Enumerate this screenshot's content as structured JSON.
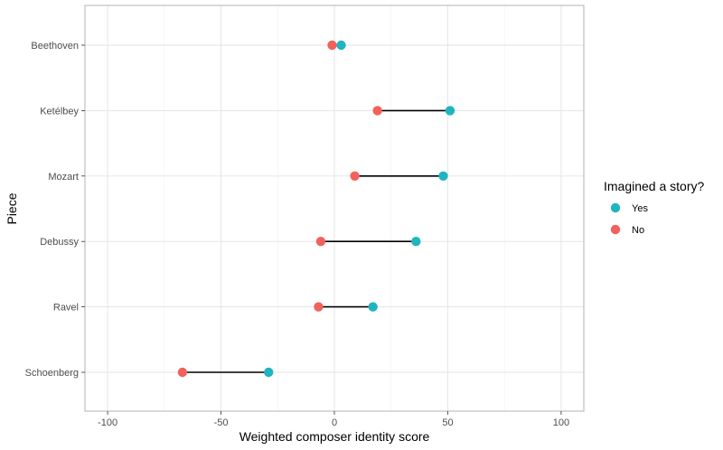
{
  "chart_data": {
    "type": "dumbbell",
    "xlabel": "Weighted composer identity score",
    "ylabel": "Piece",
    "xlim": [
      -110,
      110
    ],
    "x_ticks": [
      -100,
      -50,
      0,
      50,
      100
    ],
    "grid": true,
    "categories": [
      "Beethoven",
      "Ketélbey",
      "Mozart",
      "Debussy",
      "Ravel",
      "Schoenberg"
    ],
    "series": [
      {
        "name": "Yes",
        "color": "#1FB5BE",
        "values": [
          3,
          51,
          48,
          36,
          17,
          -29
        ]
      },
      {
        "name": "No",
        "color": "#F2615B",
        "values": [
          -1,
          19,
          9,
          -6,
          -7,
          -67
        ]
      }
    ],
    "legend": {
      "title": "Imagined a story?",
      "position": "right"
    }
  }
}
